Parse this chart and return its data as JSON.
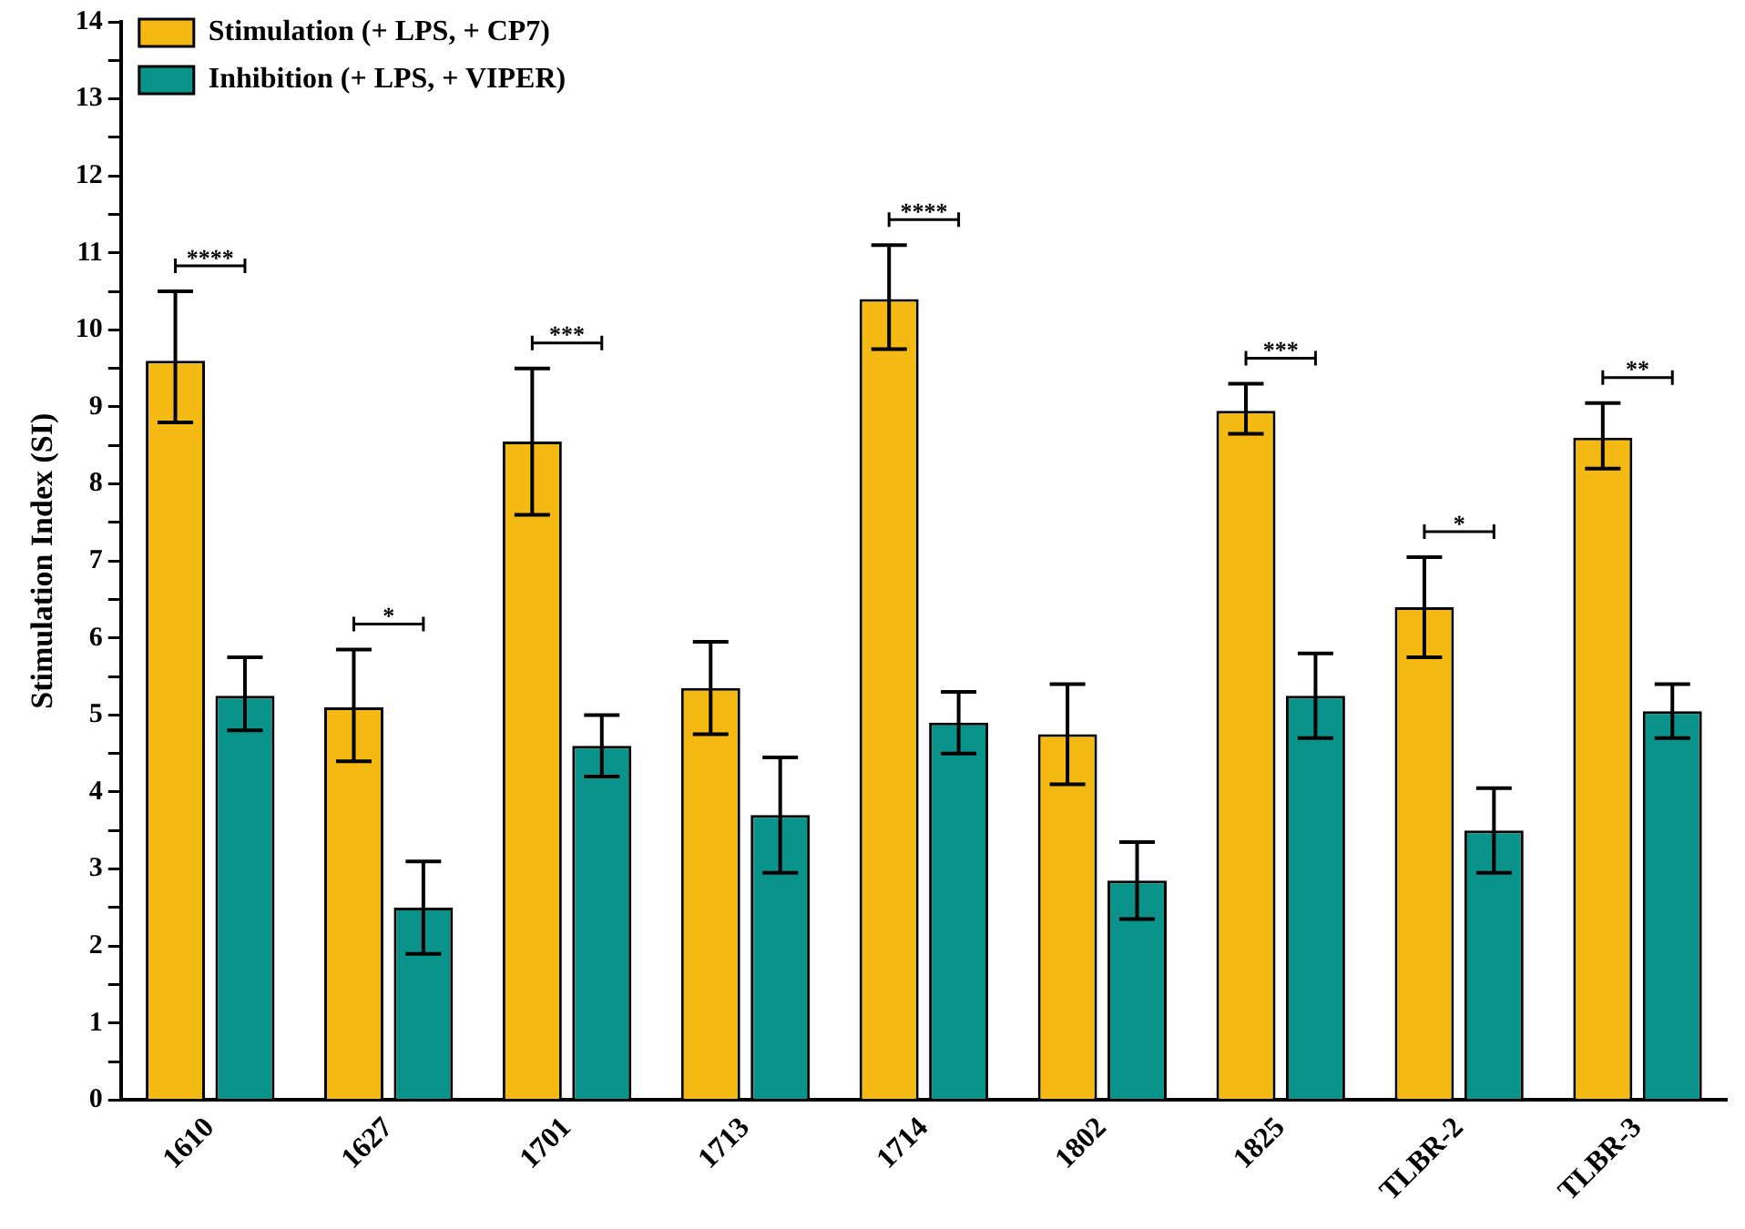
{
  "chart_data": {
    "type": "bar",
    "ylabel": "Stimulation Index (SI)",
    "categories": [
      "1610",
      "1627",
      "1701",
      "1713",
      "1714",
      "1802",
      "1825",
      "TLBR-2",
      "TLBR-3"
    ],
    "series": [
      {
        "name": "Stimulation (+ LPS, + CP7)",
        "color": "#f5b914",
        "values": [
          9.6,
          5.1,
          8.55,
          5.35,
          10.4,
          4.75,
          8.95,
          6.4,
          8.6
        ],
        "errors": [
          [
            8.8,
            10.5
          ],
          [
            4.4,
            5.85
          ],
          [
            7.6,
            9.5
          ],
          [
            4.75,
            5.95
          ],
          [
            9.75,
            11.1
          ],
          [
            4.1,
            5.4
          ],
          [
            8.65,
            9.3
          ],
          [
            5.75,
            7.05
          ],
          [
            8.2,
            9.05
          ]
        ]
      },
      {
        "name": "Inhibition (+ LPS, + VIPER)",
        "color": "#0a938a",
        "values": [
          5.25,
          2.5,
          4.6,
          3.7,
          4.9,
          2.85,
          5.25,
          3.5,
          5.05
        ],
        "errors": [
          [
            4.8,
            5.75
          ],
          [
            1.9,
            3.1
          ],
          [
            4.2,
            5.0
          ],
          [
            2.95,
            4.45
          ],
          [
            4.5,
            5.3
          ],
          [
            2.35,
            3.35
          ],
          [
            4.7,
            5.8
          ],
          [
            2.95,
            4.05
          ],
          [
            4.7,
            5.4
          ]
        ]
      }
    ],
    "ylim": [
      0,
      14
    ],
    "yticks": [
      0,
      {
        "value": 0.5,
        "label": null
      },
      1,
      {
        "value": 1.5,
        "label": null
      },
      2,
      {
        "value": 2.5,
        "label": null
      },
      3,
      {
        "value": 3.5,
        "label": null
      },
      4,
      {
        "value": 4.5,
        "label": null
      },
      5,
      {
        "value": 5.5,
        "label": null
      },
      6,
      {
        "value": 6.5,
        "label": null
      },
      7,
      {
        "value": 7.5,
        "label": null
      },
      8,
      {
        "value": 8.5,
        "label": null
      },
      9,
      {
        "value": 9.5,
        "label": null
      },
      10,
      {
        "value": 10.5,
        "label": null
      },
      11,
      {
        "value": 11.5,
        "label": null
      },
      12,
      {
        "value": 12.5,
        "label": null
      },
      13,
      {
        "value": 13.5,
        "label": null
      },
      14
    ],
    "annotations": [
      "****",
      "*",
      "***",
      "****",
      "***",
      "*",
      "**"
    ],
    "grid": false,
    "legend": "top left"
  }
}
